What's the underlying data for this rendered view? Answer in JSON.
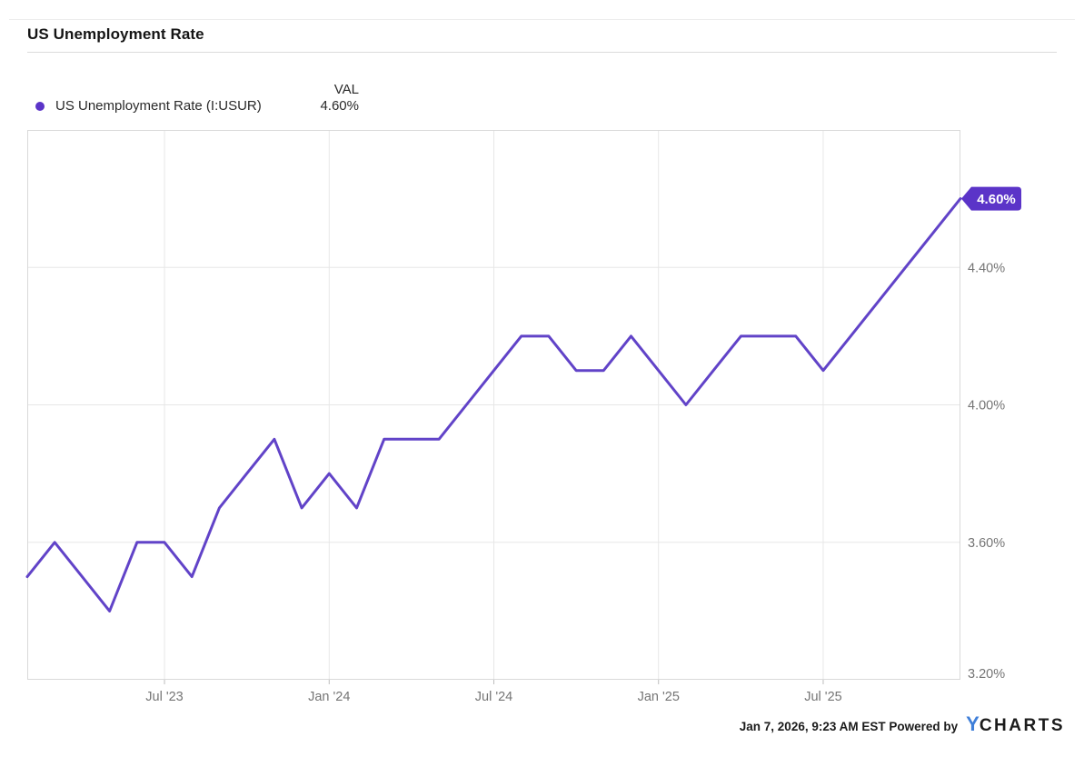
{
  "widget": {
    "title": "US Unemployment Rate",
    "footer": {
      "timestamp_and_credit": "Jan 7, 2026, 9:23 AM EST Powered by",
      "logo_y": "Y",
      "logo_charts": "CHARTS"
    }
  },
  "legend": {
    "val_header": "VAL",
    "series_label": "US Unemployment Rate (I:USUR)",
    "series_value": "4.60%"
  },
  "colors": {
    "accent_purple": "#5b34c8",
    "line_purple": "#6143c8",
    "logo_blue": "#3f7fd9",
    "axis_text": "#757575",
    "grid": "#e7e7e7",
    "plot_border": "#d9d9d9",
    "tick": "#bdbdbd"
  },
  "chart_data": {
    "type": "line",
    "title": "US Unemployment Rate",
    "series": [
      {
        "name": "US Unemployment Rate (I:USUR)",
        "values": [
          3.5,
          3.6,
          3.5,
          3.4,
          3.6,
          3.6,
          3.5,
          3.7,
          3.8,
          3.9,
          3.7,
          3.8,
          3.7,
          3.9,
          3.9,
          3.9,
          4.0,
          4.1,
          4.2,
          4.2,
          4.1,
          4.1,
          4.2,
          4.1,
          4.0,
          4.1,
          4.2,
          4.2,
          4.2,
          4.1,
          4.2,
          4.3,
          4.4,
          4.5,
          4.6
        ]
      }
    ],
    "x": [
      "Feb '23",
      "Mar '23",
      "Apr '23",
      "May '23",
      "Jun '23",
      "Jul '23",
      "Aug '23",
      "Sep '23",
      "Oct '23",
      "Nov '23",
      "Dec '23",
      "Jan '24",
      "Feb '24",
      "Mar '24",
      "Apr '24",
      "May '24",
      "Jun '24",
      "Jul '24",
      "Aug '24",
      "Sep '24",
      "Oct '24",
      "Nov '24",
      "Dec '24",
      "Jan '25",
      "Feb '25",
      "Mar '25",
      "Apr '25",
      "May '25",
      "Jun '25",
      "Jul '25",
      "Aug '25",
      "Sep '25",
      "Oct '25",
      "Nov '25",
      "Dec '25"
    ],
    "xlabel": "",
    "ylabel": "",
    "ylim": [
      3.2,
      4.8
    ],
    "yticks": [
      {
        "value": 3.2,
        "label": "3.20%"
      },
      {
        "value": 3.6,
        "label": "3.60%"
      },
      {
        "value": 4.0,
        "label": "4.00%"
      },
      {
        "value": 4.4,
        "label": "4.40%"
      }
    ],
    "xticks": [
      {
        "index": 5,
        "label": "Jul '23"
      },
      {
        "index": 11,
        "label": "Jan '24"
      },
      {
        "index": 17,
        "label": "Jul '24"
      },
      {
        "index": 23,
        "label": "Jan '25"
      },
      {
        "index": 29,
        "label": "Jul '25"
      }
    ],
    "end_badge": {
      "label": "4.60%"
    },
    "grid": true,
    "legend_position": "top-left"
  }
}
